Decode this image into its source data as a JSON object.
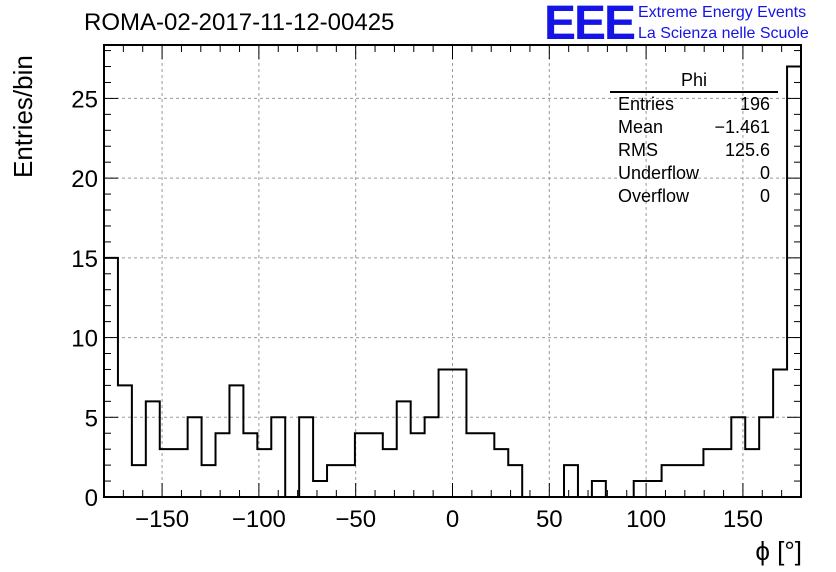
{
  "run_title": "ROMA-02-2017-11-12-00425",
  "logo": {
    "mark": "EEE",
    "line1": "Extreme Energy Events",
    "line2": "La Scienza nelle Scuole"
  },
  "stats": {
    "name": "Phi",
    "rows": [
      {
        "label": "Entries",
        "value": "196"
      },
      {
        "label": "Mean",
        "value": "−1.461"
      },
      {
        "label": "RMS",
        "value": "125.6"
      },
      {
        "label": "Underflow",
        "value": "0"
      },
      {
        "label": "Overflow",
        "value": "0"
      }
    ]
  },
  "chart_data": {
    "type": "bar",
    "style": "step-histogram",
    "xlabel": "ϕ [°]",
    "ylabel": "Entries/bin",
    "xlim": [
      -180,
      180
    ],
    "ylim": [
      0,
      28.35
    ],
    "grid": true,
    "bin_width": 7.2,
    "x_ticks": [
      -150,
      -100,
      -50,
      0,
      50,
      100,
      150
    ],
    "y_ticks": [
      0,
      5,
      10,
      15,
      20,
      25
    ],
    "values": [
      15,
      7,
      2,
      6,
      3,
      3,
      5,
      2,
      4,
      7,
      4,
      3,
      5,
      0,
      5,
      1,
      2,
      2,
      4,
      4,
      3,
      6,
      4,
      5,
      8,
      8,
      4,
      4,
      3,
      2,
      0,
      0,
      0,
      2,
      0,
      1,
      0,
      0,
      1,
      1,
      2,
      2,
      2,
      3,
      3,
      5,
      3,
      5,
      8,
      27
    ]
  }
}
